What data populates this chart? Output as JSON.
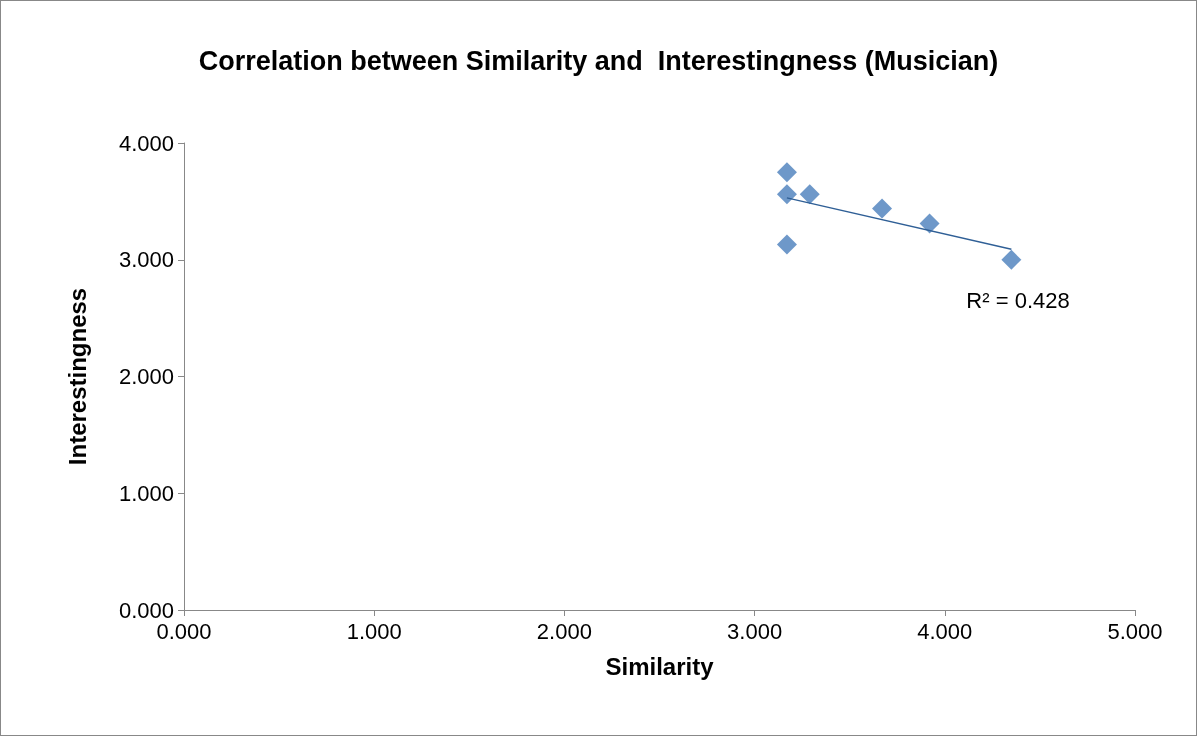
{
  "chart_data": {
    "type": "scatter",
    "title": "Correlation between Similarity and  Interestingness (Musician)",
    "xlabel": "Similarity",
    "ylabel": "Interestingness",
    "xlim": [
      0,
      5
    ],
    "xticks": [
      {
        "value": 0,
        "label": "0.000"
      },
      {
        "value": 1,
        "label": "1.000"
      },
      {
        "value": 2,
        "label": "2.000"
      },
      {
        "value": 3,
        "label": "3.000"
      },
      {
        "value": 4,
        "label": "4.000"
      },
      {
        "value": 5,
        "label": "5.000"
      }
    ],
    "ylim": [
      0,
      4
    ],
    "yticks": [
      {
        "value": 0,
        "label": "0.000"
      },
      {
        "value": 1,
        "label": "1.000"
      },
      {
        "value": 2,
        "label": "2.000"
      },
      {
        "value": 3,
        "label": "3.000"
      },
      {
        "value": 4,
        "label": "4.000"
      }
    ],
    "grid": false,
    "marker": "diamond",
    "series": [
      {
        "color": "#4a7ebb",
        "x": [
          3.17,
          3.17,
          3.29,
          3.67,
          3.92,
          3.17,
          4.35
        ],
        "values": [
          3.75,
          3.56,
          3.56,
          3.44,
          3.31,
          3.13,
          3.0
        ]
      },
      {
        "type": "line",
        "color": "#2f5f96",
        "line_style": "solid",
        "marker": "none",
        "x": [
          3.17,
          4.35
        ],
        "values": [
          3.53,
          3.09
        ]
      }
    ],
    "annotations": [
      {
        "text": "R² = 0.428",
        "x": 4.35,
        "y": 3.09
      }
    ]
  }
}
